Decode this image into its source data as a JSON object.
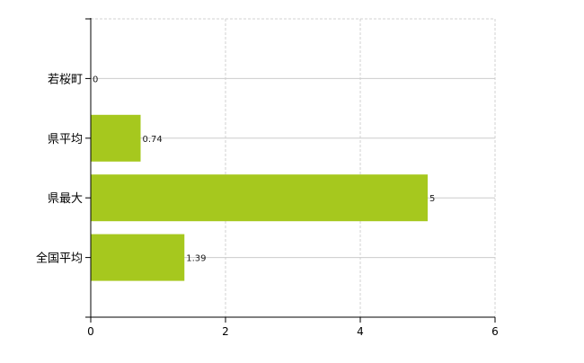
{
  "chart_data": {
    "type": "bar",
    "orientation": "horizontal",
    "categories": [
      "若桜町",
      "県平均",
      "県最大",
      "全国平均"
    ],
    "values": [
      0,
      0.74,
      5,
      1.39
    ],
    "value_labels": [
      "0",
      "0.74",
      "5",
      "1.39"
    ],
    "xlim": [
      0,
      6
    ],
    "xticks": [
      "0",
      "2",
      "4",
      "6"
    ],
    "title": "",
    "xlabel": "",
    "ylabel": "",
    "grid": true,
    "bar_color": "#a6c81e",
    "label_color": "#1a1a1a"
  }
}
